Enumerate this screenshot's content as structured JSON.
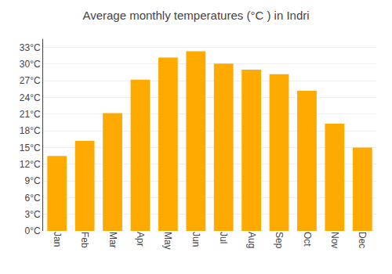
{
  "chart_data": {
    "type": "bar",
    "title": "Average monthly temperatures (°C ) in Indri",
    "categories": [
      "Jan",
      "Feb",
      "Mar",
      "Apr",
      "May",
      "Jun",
      "Jul",
      "Aug",
      "Sep",
      "Oct",
      "Nov",
      "Dec"
    ],
    "values": [
      13.5,
      16.2,
      21.2,
      27.2,
      31.2,
      32.3,
      30.1,
      29.0,
      28.2,
      25.2,
      19.3,
      15.0
    ],
    "color": "#FFAA00",
    "ylim": [
      0,
      34.5
    ],
    "yticks": [
      {
        "value": 0,
        "label": "0°C"
      },
      {
        "value": 3,
        "label": "3°C"
      },
      {
        "value": 6,
        "label": "6°C"
      },
      {
        "value": 9,
        "label": "9°C"
      },
      {
        "value": 12,
        "label": "12°C"
      },
      {
        "value": 15,
        "label": "15°C"
      },
      {
        "value": 18,
        "label": "18°C"
      },
      {
        "value": 21,
        "label": "21°C"
      },
      {
        "value": 24,
        "label": "24°C"
      },
      {
        "value": 27,
        "label": "27°C"
      },
      {
        "value": 30,
        "label": "30°C"
      },
      {
        "value": 33,
        "label": "33°C"
      }
    ],
    "grid": true
  }
}
